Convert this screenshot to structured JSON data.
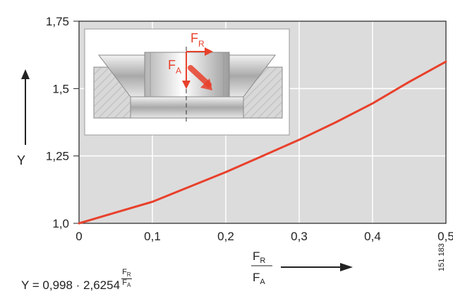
{
  "chart_data": {
    "type": "line",
    "title": "",
    "ylabel": "Y",
    "xlabel": {
      "num": "F",
      "num_sub": "R",
      "den": "F",
      "den_sub": "A"
    },
    "x_ticks": [
      "0",
      "0,1",
      "0,2",
      "0,3",
      "0,4",
      "0,5"
    ],
    "y_ticks": [
      "1,0",
      "1,25",
      "1,5",
      "1,75"
    ],
    "xlim": [
      0,
      0.5
    ],
    "ylim": [
      1.0,
      1.75
    ],
    "grid": true,
    "series": [
      {
        "color": "#e8412c",
        "x": [
          0,
          0.05,
          0.1,
          0.15,
          0.2,
          0.25,
          0.3,
          0.35,
          0.4,
          0.45,
          0.5
        ],
        "y": [
          1.0,
          1.04,
          1.08,
          1.135,
          1.19,
          1.25,
          1.31,
          1.375,
          1.445,
          1.525,
          1.6
        ]
      }
    ]
  },
  "formula": {
    "text": "Y = 0,998 · 2,6254",
    "exp_num": "F",
    "exp_num_sub": "R",
    "exp_den": "F",
    "exp_den_sub": "A"
  },
  "inset": {
    "force_radial": "F",
    "force_radial_sub": "R",
    "force_axial": "F",
    "force_axial_sub": "A"
  },
  "figure_id": "151 183",
  "colors": {
    "plot_bg": "#dcdcdc",
    "grid": "#ffffff",
    "curve": "#e8412c",
    "accent": "#e8412c"
  }
}
